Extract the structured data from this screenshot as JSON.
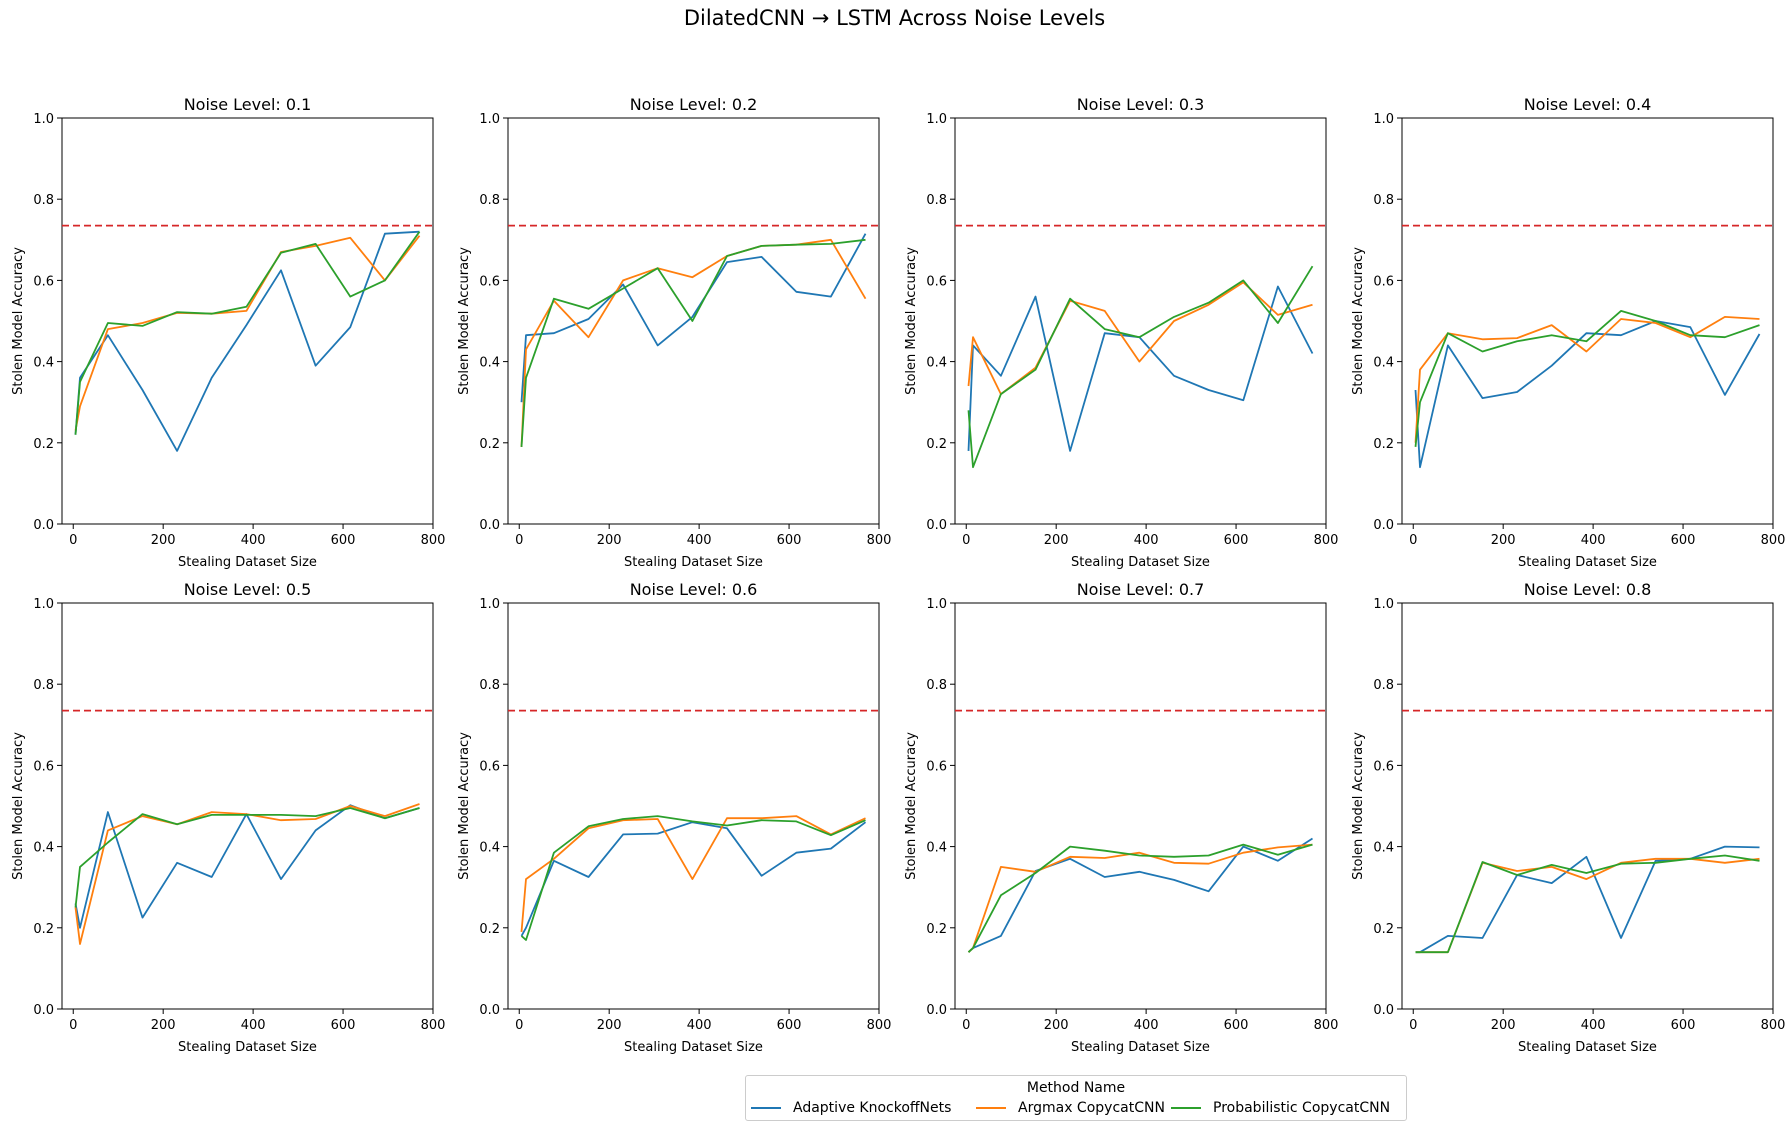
{
  "figure": {
    "title": "DilatedCNN → LSTM Across Noise Levels",
    "legend_title": "Method Name"
  },
  "colors": {
    "Adaptive KnockoffNets": "#1f77b4",
    "Argmax CopycatCNN": "#ff7f0e",
    "Probabilistic CopycatCNN": "#2ca02c",
    "reference_line": "#d62728"
  },
  "chart_data": [
    {
      "type": "line",
      "title": "Noise Level: 0.1",
      "xlabel": "Stealing Dataset Size",
      "ylabel": "Stolen Model Accuracy",
      "xlim": [
        -25,
        800
      ],
      "ylim": [
        0,
        1.0
      ],
      "xticks": [
        0,
        200,
        400,
        600,
        800
      ],
      "yticks": [
        0.0,
        0.2,
        0.4,
        0.6,
        0.8,
        1.0
      ],
      "reference_line": 0.735,
      "legend": "figure-bottom-center",
      "x": [
        5,
        15,
        77,
        154,
        231,
        308,
        385,
        462,
        539,
        616,
        693,
        770
      ],
      "series": [
        {
          "name": "Adaptive KnockoffNets",
          "values": [
            0.22,
            0.36,
            0.465,
            0.33,
            0.18,
            0.36,
            0.49,
            0.625,
            0.39,
            0.485,
            0.715,
            0.72
          ]
        },
        {
          "name": "Argmax CopycatCNN",
          "values": [
            0.23,
            0.29,
            0.48,
            0.495,
            0.52,
            0.518,
            0.525,
            0.67,
            0.685,
            0.705,
            0.6,
            0.71
          ]
        },
        {
          "name": "Probabilistic CopycatCNN",
          "values": [
            0.22,
            0.35,
            0.495,
            0.488,
            0.522,
            0.518,
            0.535,
            0.668,
            0.69,
            0.56,
            0.6,
            0.72
          ]
        }
      ]
    },
    {
      "type": "line",
      "title": "Noise Level: 0.2",
      "xlabel": "Stealing Dataset Size",
      "ylabel": "Stolen Model Accuracy",
      "xlim": [
        -25,
        800
      ],
      "ylim": [
        0,
        1.0
      ],
      "xticks": [
        0,
        200,
        400,
        600,
        800
      ],
      "yticks": [
        0.0,
        0.2,
        0.4,
        0.6,
        0.8,
        1.0
      ],
      "reference_line": 0.735,
      "legend": "figure-bottom-center",
      "x": [
        5,
        15,
        77,
        154,
        231,
        308,
        385,
        462,
        539,
        616,
        693,
        770
      ],
      "series": [
        {
          "name": "Adaptive KnockoffNets",
          "values": [
            0.3,
            0.465,
            0.47,
            0.505,
            0.59,
            0.44,
            0.51,
            0.645,
            0.658,
            0.572,
            0.56,
            0.715
          ]
        },
        {
          "name": "Argmax CopycatCNN",
          "values": [
            0.19,
            0.43,
            0.55,
            0.46,
            0.6,
            0.63,
            0.608,
            0.66,
            0.685,
            0.688,
            0.7,
            0.555
          ]
        },
        {
          "name": "Probabilistic CopycatCNN",
          "values": [
            0.19,
            0.36,
            0.555,
            0.53,
            0.58,
            0.63,
            0.5,
            0.66,
            0.685,
            0.688,
            0.69,
            0.7
          ]
        }
      ]
    },
    {
      "type": "line",
      "title": "Noise Level: 0.3",
      "xlabel": "Stealing Dataset Size",
      "ylabel": "Stolen Model Accuracy",
      "xlim": [
        -25,
        800
      ],
      "ylim": [
        0,
        1.0
      ],
      "xticks": [
        0,
        200,
        400,
        600,
        800
      ],
      "yticks": [
        0.0,
        0.2,
        0.4,
        0.6,
        0.8,
        1.0
      ],
      "reference_line": 0.735,
      "legend": "figure-bottom-center",
      "x": [
        5,
        15,
        77,
        154,
        231,
        308,
        385,
        462,
        539,
        616,
        693,
        770
      ],
      "series": [
        {
          "name": "Adaptive KnockoffNets",
          "values": [
            0.18,
            0.44,
            0.365,
            0.56,
            0.18,
            0.47,
            0.46,
            0.365,
            0.33,
            0.305,
            0.585,
            0.42
          ]
        },
        {
          "name": "Argmax CopycatCNN",
          "values": [
            0.34,
            0.46,
            0.32,
            0.385,
            0.55,
            0.525,
            0.4,
            0.5,
            0.54,
            0.595,
            0.515,
            0.54
          ]
        },
        {
          "name": "Probabilistic CopycatCNN",
          "values": [
            0.28,
            0.14,
            0.32,
            0.38,
            0.555,
            0.48,
            0.46,
            0.51,
            0.545,
            0.6,
            0.495,
            0.635
          ]
        }
      ]
    },
    {
      "type": "line",
      "title": "Noise Level: 0.4",
      "xlabel": "Stealing Dataset Size",
      "ylabel": "Stolen Model Accuracy",
      "xlim": [
        -25,
        800
      ],
      "ylim": [
        0,
        1.0
      ],
      "xticks": [
        0,
        200,
        400,
        600,
        800
      ],
      "yticks": [
        0.0,
        0.2,
        0.4,
        0.6,
        0.8,
        1.0
      ],
      "reference_line": 0.735,
      "legend": "figure-bottom-center",
      "x": [
        5,
        15,
        77,
        154,
        231,
        308,
        385,
        462,
        539,
        616,
        693,
        770
      ],
      "series": [
        {
          "name": "Adaptive KnockoffNets",
          "values": [
            0.33,
            0.14,
            0.44,
            0.31,
            0.325,
            0.39,
            0.47,
            0.465,
            0.5,
            0.485,
            0.318,
            0.468
          ]
        },
        {
          "name": "Argmax CopycatCNN",
          "values": [
            0.2,
            0.38,
            0.47,
            0.455,
            0.458,
            0.49,
            0.425,
            0.505,
            0.495,
            0.46,
            0.51,
            0.505
          ]
        },
        {
          "name": "Probabilistic CopycatCNN",
          "values": [
            0.19,
            0.3,
            0.47,
            0.425,
            0.45,
            0.465,
            0.45,
            0.525,
            0.5,
            0.465,
            0.46,
            0.49
          ]
        }
      ]
    },
    {
      "type": "line",
      "title": "Noise Level: 0.5",
      "xlabel": "Stealing Dataset Size",
      "ylabel": "Stolen Model Accuracy",
      "xlim": [
        -25,
        800
      ],
      "ylim": [
        0,
        1.0
      ],
      "xticks": [
        0,
        200,
        400,
        600,
        800
      ],
      "yticks": [
        0.0,
        0.2,
        0.4,
        0.6,
        0.8,
        1.0
      ],
      "reference_line": 0.735,
      "legend": "figure-bottom-center",
      "x": [
        5,
        15,
        77,
        154,
        231,
        308,
        385,
        462,
        539,
        616,
        693,
        770
      ],
      "series": [
        {
          "name": "Adaptive KnockoffNets",
          "values": [
            0.26,
            0.2,
            0.485,
            0.225,
            0.36,
            0.325,
            0.48,
            0.32,
            0.44,
            0.502,
            0.47,
            0.495
          ]
        },
        {
          "name": "Argmax CopycatCNN",
          "values": [
            0.25,
            0.16,
            0.44,
            0.475,
            0.455,
            0.485,
            0.48,
            0.465,
            0.468,
            0.5,
            0.475,
            0.505
          ]
        },
        {
          "name": "Probabilistic CopycatCNN",
          "values": [
            0.25,
            0.35,
            0.41,
            0.48,
            0.455,
            0.478,
            0.478,
            0.478,
            0.475,
            0.495,
            0.47,
            0.495
          ]
        }
      ]
    },
    {
      "type": "line",
      "title": "Noise Level: 0.6",
      "xlabel": "Stealing Dataset Size",
      "ylabel": "Stolen Model Accuracy",
      "xlim": [
        -25,
        800
      ],
      "ylim": [
        0,
        1.0
      ],
      "xticks": [
        0,
        200,
        400,
        600,
        800
      ],
      "yticks": [
        0.0,
        0.2,
        0.4,
        0.6,
        0.8,
        1.0
      ],
      "reference_line": 0.735,
      "legend": "figure-bottom-center",
      "x": [
        5,
        15,
        77,
        154,
        231,
        308,
        385,
        462,
        539,
        616,
        693,
        770
      ],
      "series": [
        {
          "name": "Adaptive KnockoffNets",
          "values": [
            0.18,
            0.2,
            0.365,
            0.325,
            0.43,
            0.432,
            0.46,
            0.445,
            0.328,
            0.385,
            0.395,
            0.46
          ]
        },
        {
          "name": "Argmax CopycatCNN",
          "values": [
            0.19,
            0.32,
            0.37,
            0.445,
            0.465,
            0.468,
            0.32,
            0.47,
            0.47,
            0.475,
            0.43,
            0.47
          ]
        },
        {
          "name": "Probabilistic CopycatCNN",
          "values": [
            0.18,
            0.17,
            0.385,
            0.45,
            0.468,
            0.475,
            0.462,
            0.452,
            0.465,
            0.462,
            0.428,
            0.465
          ]
        }
      ]
    },
    {
      "type": "line",
      "title": "Noise Level: 0.7",
      "xlabel": "Stealing Dataset Size",
      "ylabel": "Stolen Model Accuracy",
      "xlim": [
        -25,
        800
      ],
      "ylim": [
        0,
        1.0
      ],
      "xticks": [
        0,
        200,
        400,
        600,
        800
      ],
      "yticks": [
        0.0,
        0.2,
        0.4,
        0.6,
        0.8,
        1.0
      ],
      "reference_line": 0.735,
      "legend": "figure-bottom-center",
      "x": [
        5,
        15,
        77,
        154,
        231,
        308,
        385,
        462,
        539,
        616,
        693,
        770
      ],
      "series": [
        {
          "name": "Adaptive KnockoffNets",
          "values": [
            0.14,
            0.15,
            0.18,
            0.34,
            0.37,
            0.325,
            0.338,
            0.318,
            0.29,
            0.4,
            0.365,
            0.42
          ]
        },
        {
          "name": "Argmax CopycatCNN",
          "values": [
            0.14,
            0.15,
            0.35,
            0.338,
            0.375,
            0.372,
            0.385,
            0.36,
            0.358,
            0.385,
            0.398,
            0.405
          ]
        },
        {
          "name": "Probabilistic CopycatCNN",
          "values": [
            0.14,
            0.15,
            0.28,
            0.335,
            0.4,
            0.39,
            0.378,
            0.375,
            0.378,
            0.405,
            0.38,
            0.405
          ]
        }
      ]
    },
    {
      "type": "line",
      "title": "Noise Level: 0.8",
      "xlabel": "Stealing Dataset Size",
      "ylabel": "Stolen Model Accuracy",
      "xlim": [
        -25,
        800
      ],
      "ylim": [
        0,
        1.0
      ],
      "xticks": [
        0,
        200,
        400,
        600,
        800
      ],
      "yticks": [
        0.0,
        0.2,
        0.4,
        0.6,
        0.8,
        1.0
      ],
      "reference_line": 0.735,
      "legend": "figure-bottom-center",
      "x": [
        5,
        15,
        77,
        154,
        231,
        308,
        385,
        462,
        539,
        616,
        693,
        770
      ],
      "series": [
        {
          "name": "Adaptive KnockoffNets",
          "values": [
            0.14,
            0.14,
            0.18,
            0.175,
            0.33,
            0.31,
            0.375,
            0.175,
            0.365,
            0.37,
            0.4,
            0.398
          ]
        },
        {
          "name": "Argmax CopycatCNN",
          "values": [
            0.14,
            0.14,
            0.14,
            0.36,
            0.34,
            0.35,
            0.32,
            0.36,
            0.37,
            0.37,
            0.36,
            0.37
          ]
        },
        {
          "name": "Probabilistic CopycatCNN",
          "values": [
            0.14,
            0.14,
            0.14,
            0.362,
            0.33,
            0.355,
            0.335,
            0.358,
            0.36,
            0.37,
            0.378,
            0.365
          ]
        }
      ]
    }
  ]
}
